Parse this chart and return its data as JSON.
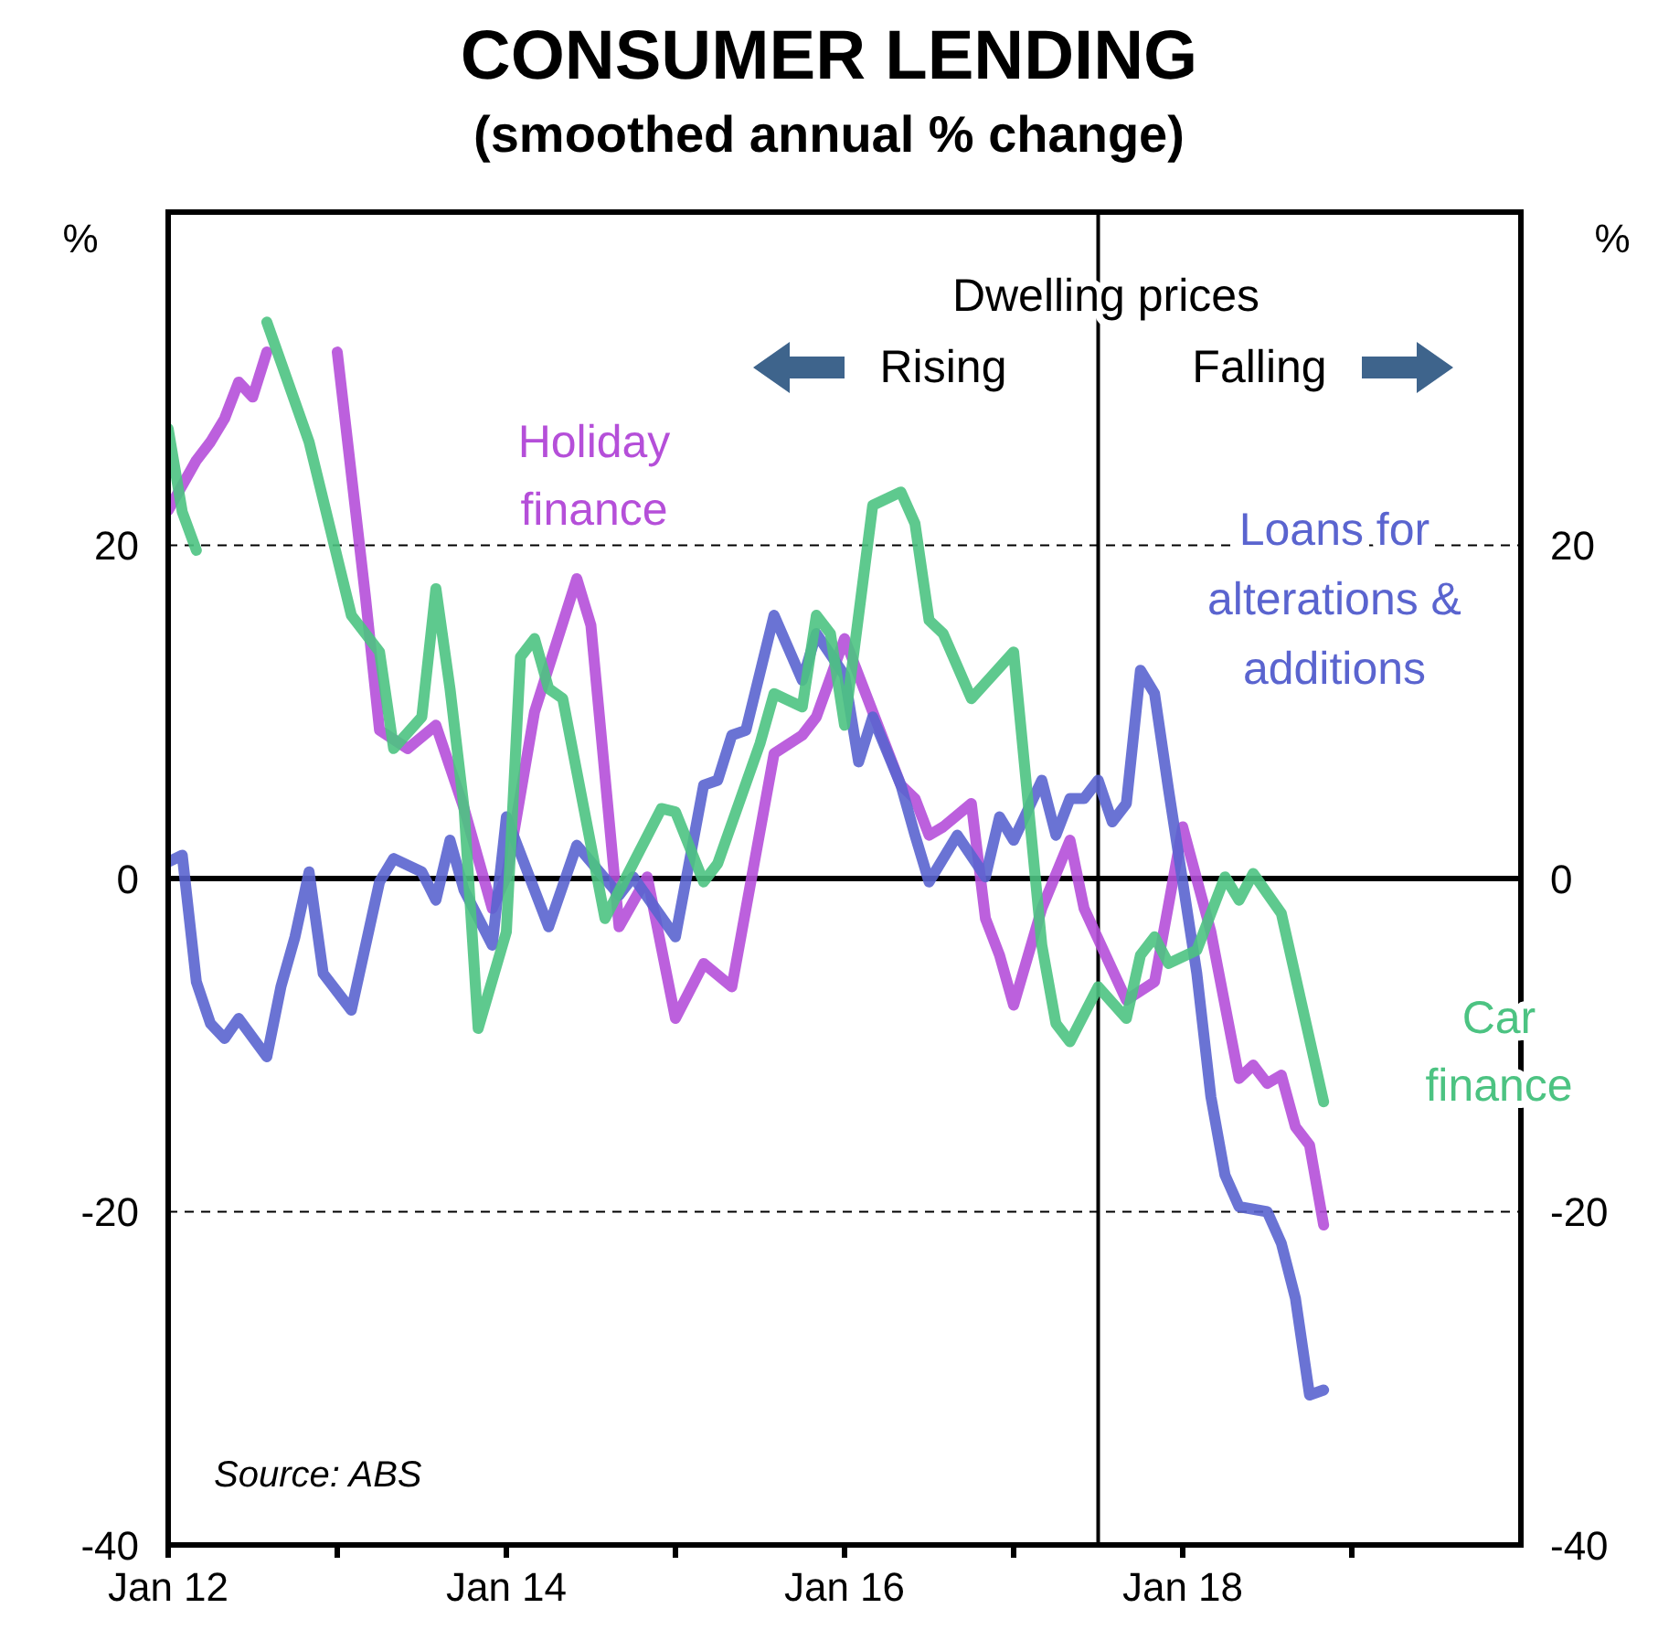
{
  "chart_data": {
    "type": "line",
    "title": "CONSUMER LENDING",
    "subtitle": "(smoothed annual % change)",
    "ylabel": "%",
    "y2label": "%",
    "xlim": [
      "2012-01",
      "2020-01"
    ],
    "xticks": [
      {
        "value": "2012-01",
        "label": "Jan 12"
      },
      {
        "value": "2013-01",
        "label": null
      },
      {
        "value": "2014-01",
        "label": "Jan 14"
      },
      {
        "value": "2015-01",
        "label": null
      },
      {
        "value": "2016-01",
        "label": "Jan 16"
      },
      {
        "value": "2017-01",
        "label": null
      },
      {
        "value": "2018-01",
        "label": "Jan 18"
      },
      {
        "value": "2019-01",
        "label": null
      }
    ],
    "ylim": [
      -40,
      40
    ],
    "yticks": [
      -40,
      -20,
      0,
      20
    ],
    "y2lim": [
      -40,
      40
    ],
    "y2ticks": [
      -40,
      -20,
      0,
      20
    ],
    "grid": "y",
    "marker": "none",
    "line_style": "solid",
    "ref_lines": [
      {
        "axis": "y",
        "value": 0,
        "color": "#000000",
        "line_style": "solid"
      },
      {
        "axis": "x",
        "value": "2017-07",
        "color": "#000000",
        "line_style": "solid"
      }
    ],
    "annotations": [
      "Dwelling prices",
      "Rising",
      "Falling",
      "Source: ABS"
    ],
    "series": [
      {
        "name": "Holiday finance",
        "color": "#b54fd9",
        "x": [
          "2012-01",
          "2012-03",
          "2012-04",
          "2012-05",
          "2012-06",
          "2012-07",
          "2012-08",
          "2012-09",
          "2012-10",
          "2012-12",
          "2013-01",
          "2013-03",
          "2013-04",
          "2013-06",
          "2013-08",
          "2013-10",
          "2013-12",
          "2014-01",
          "2014-03",
          "2014-06",
          "2014-07",
          "2014-09",
          "2014-11",
          "2015-01",
          "2015-03",
          "2015-05",
          "2015-08",
          "2015-10",
          "2015-11",
          "2016-01",
          "2016-03",
          "2016-05",
          "2016-06",
          "2016-07",
          "2016-08",
          "2016-10",
          "2016-11",
          "2016-12",
          "2017-01",
          "2017-03",
          "2017-05",
          "2017-06",
          "2017-09",
          "2017-11",
          "2018-01",
          "2018-03",
          "2018-05",
          "2018-06",
          "2018-07",
          "2018-08",
          "2018-09",
          "2018-10",
          "2018-11"
        ],
        "values": [
          22.1,
          25.1,
          26.2,
          27.6,
          29.8,
          28.9,
          31.6,
          null,
          null,
          null,
          31.6,
          16.9,
          8.9,
          7.8,
          9.2,
          4.2,
          -1.8,
          0.1,
          10.0,
          18.0,
          15.2,
          -2.9,
          0.1,
          -8.4,
          -5.1,
          -6.5,
          7.5,
          8.6,
          9.7,
          14.4,
          10.0,
          5.6,
          4.8,
          2.6,
          3.1,
          4.5,
          -2.4,
          -4.6,
          -7.6,
          -1.8,
          2.3,
          -1.8,
          -7.3,
          -6.2,
          3.1,
          -3.2,
          -12.0,
          -11.2,
          -12.3,
          -11.8,
          -14.9,
          -16.0,
          -20.8
        ]
      },
      {
        "name": "Loans for alterations & additions",
        "color": "#5a64cf",
        "x": [
          "2012-01",
          "2012-02",
          "2012-03",
          "2012-04",
          "2012-05",
          "2012-06",
          "2012-08",
          "2012-09",
          "2012-10",
          "2012-11",
          "2012-12",
          "2013-02",
          "2013-04",
          "2013-05",
          "2013-07",
          "2013-08",
          "2013-09",
          "2013-10",
          "2013-12",
          "2014-01",
          "2014-04",
          "2014-06",
          "2014-09",
          "2014-10",
          "2015-01",
          "2015-03",
          "2015-04",
          "2015-05",
          "2015-06",
          "2015-08",
          "2015-10",
          "2015-11",
          "2016-01",
          "2016-02",
          "2016-03",
          "2016-05",
          "2016-06",
          "2016-07",
          "2016-09",
          "2016-11",
          "2016-12",
          "2017-01",
          "2017-03",
          "2017-04",
          "2017-05",
          "2017-06",
          "2017-07",
          "2017-08",
          "2017-09",
          "2017-10",
          "2017-11",
          "2017-12",
          "2018-02",
          "2018-03",
          "2018-04",
          "2018-05",
          "2018-07",
          "2018-08",
          "2018-09",
          "2018-10",
          "2018-11"
        ],
        "values": [
          1.0,
          1.4,
          -6.2,
          -8.7,
          -9.6,
          -8.4,
          -10.7,
          -6.5,
          -3.5,
          0.4,
          -5.7,
          -7.9,
          -0.2,
          1.2,
          0.4,
          -1.3,
          2.3,
          -0.7,
          -4.0,
          3.7,
          -2.9,
          2.0,
          -1.0,
          0.1,
          -3.5,
          5.6,
          5.9,
          8.6,
          8.9,
          15.8,
          11.9,
          14.7,
          12.2,
          7.0,
          9.7,
          5.6,
          2.6,
          -0.2,
          2.6,
          0.1,
          3.7,
          2.3,
          5.9,
          2.6,
          4.8,
          4.8,
          5.9,
          3.4,
          4.5,
          12.5,
          11.1,
          5.3,
          -5.7,
          -13.1,
          -17.8,
          -19.7,
          -20.0,
          -21.9,
          -25.2,
          -31.0,
          -30.7
        ]
      },
      {
        "name": "Car finance",
        "color": "#4cc382",
        "x": [
          "2012-01",
          "2012-02",
          "2012-03",
          "2012-05",
          "2012-06",
          "2012-07",
          "2012-08",
          "2012-11",
          "2013-02",
          "2013-04",
          "2013-05",
          "2013-07",
          "2013-08",
          "2013-09",
          "2013-10",
          "2013-11",
          "2014-01",
          "2014-02",
          "2014-03",
          "2014-04",
          "2014-05",
          "2014-08",
          "2014-10",
          "2014-12",
          "2015-01",
          "2015-03",
          "2015-04",
          "2015-07",
          "2015-08",
          "2015-10",
          "2015-11",
          "2015-12",
          "2016-01",
          "2016-03",
          "2016-05",
          "2016-06",
          "2016-07",
          "2016-08",
          "2016-10",
          "2017-01",
          "2017-02",
          "2017-03",
          "2017-04",
          "2017-05",
          "2017-07",
          "2017-09",
          "2017-10",
          "2017-11",
          "2017-12",
          "2018-02",
          "2018-04",
          "2018-05",
          "2018-06",
          "2018-08",
          "2018-11"
        ],
        "values": [
          27.0,
          22.0,
          19.7,
          null,
          null,
          null,
          33.4,
          26.2,
          15.8,
          13.6,
          7.8,
          9.7,
          17.4,
          11.4,
          4.2,
          -9.0,
          -3.2,
          13.3,
          14.4,
          11.4,
          10.8,
          -2.4,
          0.9,
          4.2,
          4.0,
          -0.2,
          0.9,
          8.1,
          11.1,
          10.3,
          15.8,
          14.7,
          9.2,
          22.4,
          23.2,
          21.3,
          15.5,
          14.7,
          10.8,
          13.6,
          4.8,
          -4.0,
          -8.7,
          -9.8,
          -6.5,
          -8.4,
          -4.6,
          -3.5,
          -5.1,
          -4.3,
          0.1,
          -1.3,
          0.3,
          -2.1,
          -13.4
        ]
      }
    ]
  }
}
